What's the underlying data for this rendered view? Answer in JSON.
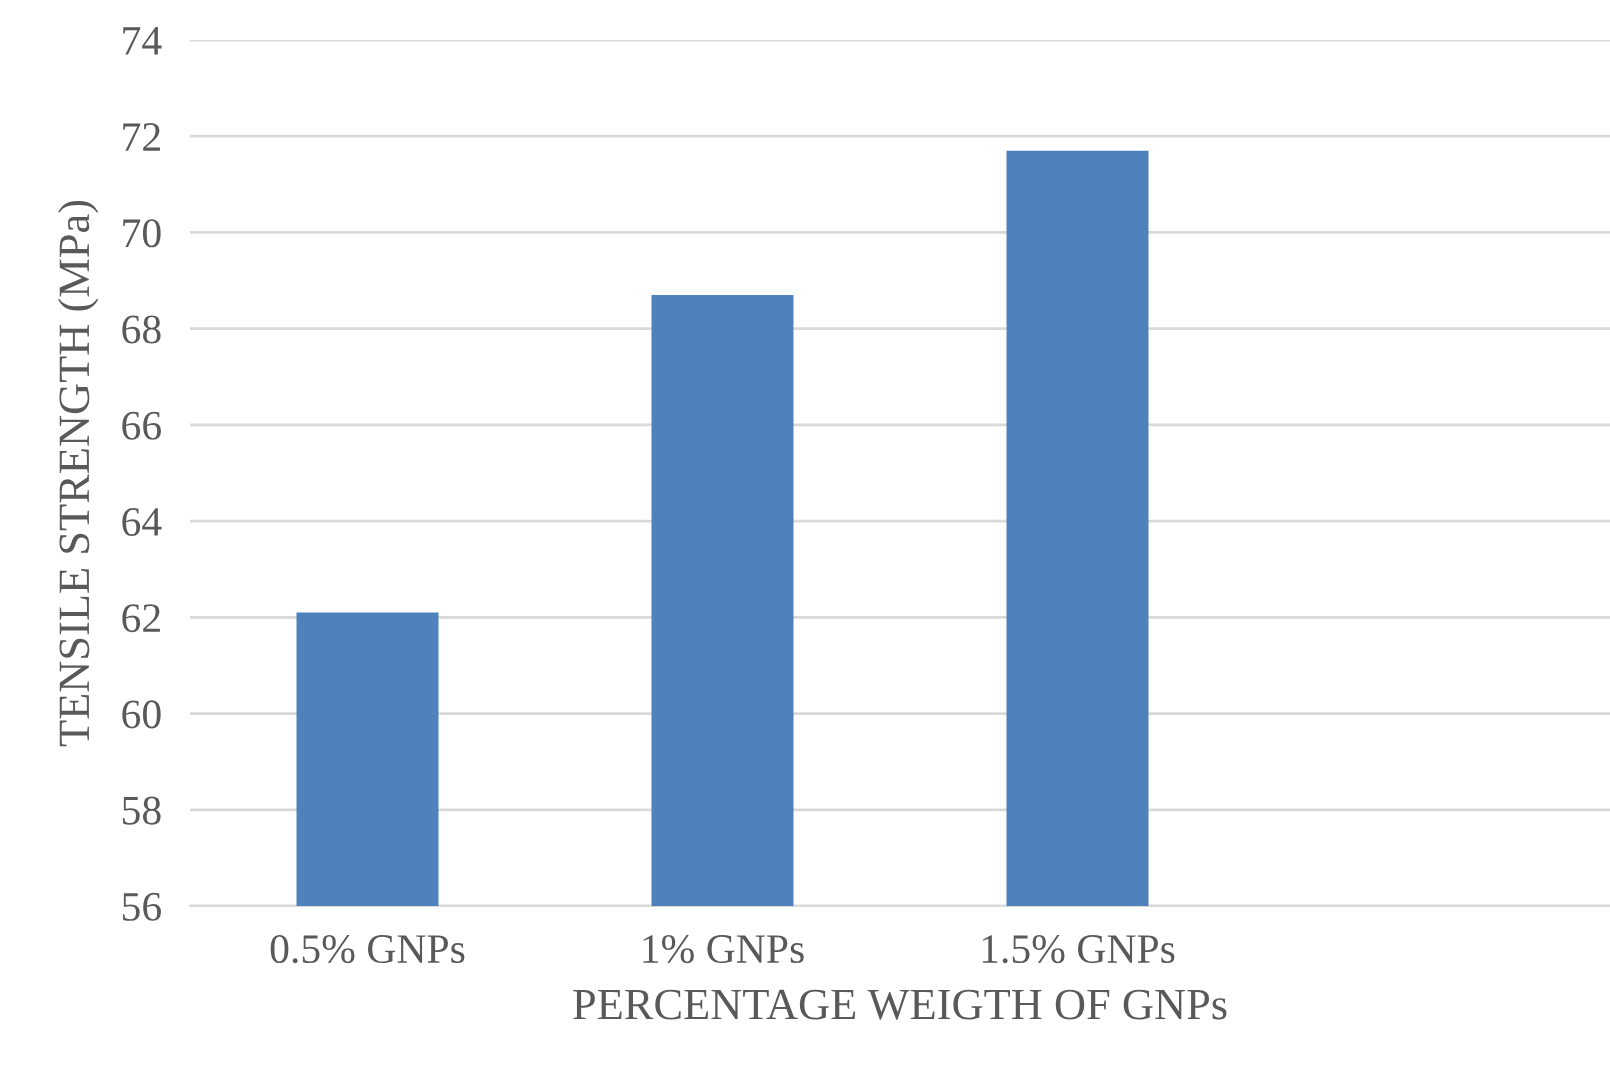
{
  "chart_data": {
    "type": "bar",
    "xlabel": "PERCENTAGE WEIGTH OF GNPs",
    "ylabel": "TENSILE STRENGTH (MPa)",
    "categories": [
      "0.5% GNPs",
      "1% GNPs",
      "1.5% GNPs",
      null
    ],
    "values": [
      62.1,
      68.7,
      71.7,
      null
    ],
    "color": "#4f81bd",
    "ylim": [
      56,
      74
    ],
    "yticks": [
      56,
      58,
      60,
      62,
      64,
      66,
      68,
      70,
      72,
      74
    ],
    "grid": "y"
  }
}
